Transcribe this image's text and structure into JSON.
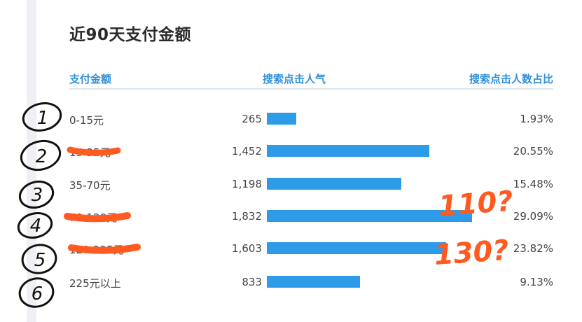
{
  "title": "近90天支付金额",
  "headers": {
    "amount": "支付金额",
    "popularity": "搜索点击人气",
    "ratio": "搜索点击人数占比"
  },
  "colors": {
    "accent": "#2f8fd8",
    "bar": "#2e9be8",
    "annotation_black": "#111111",
    "annotation_orange": "#ff5a1f"
  },
  "rows": [
    {
      "label": "0-15元",
      "popularity": "265",
      "ratio": "1.93%",
      "value": 265
    },
    {
      "label": "15-35元",
      "popularity": "1,452",
      "ratio": "20.55%",
      "value": 1452
    },
    {
      "label": "35-70元",
      "popularity": "1,198",
      "ratio": "15.48%",
      "value": 1198
    },
    {
      "label": "70-120元",
      "popularity": "1,832",
      "ratio": "29.09%",
      "value": 1832
    },
    {
      "label": "120-225元",
      "popularity": "1,603",
      "ratio": "23.82%",
      "value": 1603
    },
    {
      "label": "225元以上",
      "popularity": "833",
      "ratio": "9.13%",
      "value": 833
    }
  ],
  "annotations": {
    "note_110": "110?",
    "note_130": "130?",
    "circled_numbers": [
      "1",
      "2",
      "3",
      "4",
      "5",
      "6"
    ]
  }
}
